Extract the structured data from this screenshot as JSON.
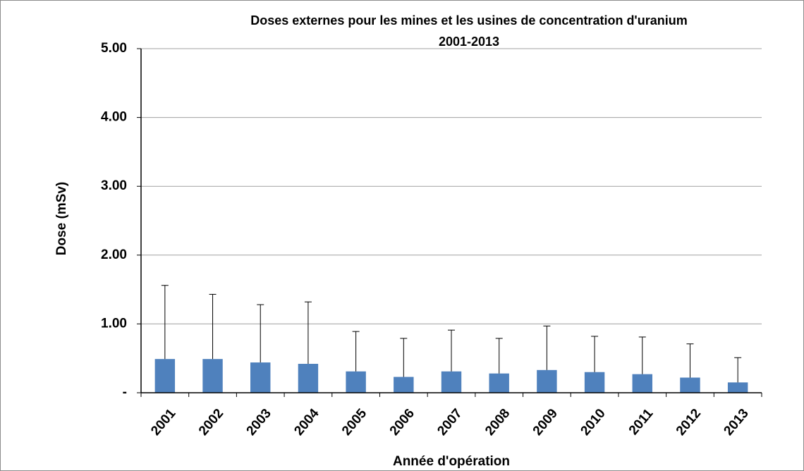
{
  "chart_data": {
    "type": "bar",
    "title": "Doses externes pour les mines et les usines de concentration d'uranium",
    "subtitle": "2001-2013",
    "x_label": "Année d'opération",
    "y_label": "Dose (mSv)",
    "categories": [
      "2001",
      "2002",
      "2003",
      "2004",
      "2005",
      "2006",
      "2007",
      "2008",
      "2009",
      "2010",
      "2011",
      "2012",
      "2013"
    ],
    "values": [
      0.49,
      0.49,
      0.44,
      0.42,
      0.31,
      0.23,
      0.31,
      0.28,
      0.33,
      0.3,
      0.27,
      0.22,
      0.15
    ],
    "errors": [
      1.07,
      0.94,
      0.84,
      0.9,
      0.58,
      0.56,
      0.6,
      0.51,
      0.64,
      0.52,
      0.54,
      0.49,
      0.36
    ],
    "color": "#4f81bd",
    "ylim": [
      0,
      5
    ],
    "yticks": [
      {
        "value": 0,
        "label": "-"
      },
      {
        "value": 1,
        "label": "1.00"
      },
      {
        "value": 2,
        "label": "2.00"
      },
      {
        "value": 3,
        "label": "3.00"
      },
      {
        "value": 4,
        "label": "4.00"
      },
      {
        "value": 5,
        "label": "5.00"
      }
    ],
    "grid": true
  }
}
